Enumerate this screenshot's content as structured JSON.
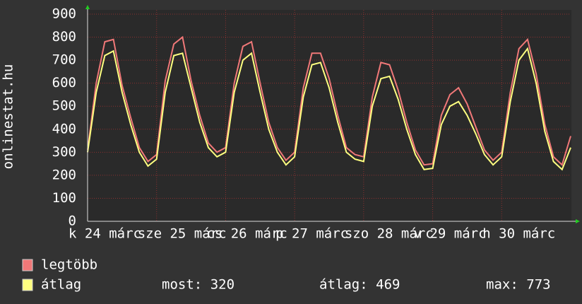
{
  "chart_data": {
    "type": "line",
    "side_label": "onlinestat.hu",
    "categories": [
      "k 24 márc",
      null,
      null,
      null,
      null,
      null,
      null,
      null,
      "sze 25 márc",
      null,
      null,
      null,
      null,
      null,
      null,
      null,
      "cs 26 márc",
      null,
      null,
      null,
      null,
      null,
      null,
      null,
      "p 27 márc",
      null,
      null,
      null,
      null,
      null,
      null,
      null,
      "szo 28 márc",
      null,
      null,
      null,
      null,
      null,
      null,
      null,
      "v 29 márc",
      null,
      null,
      null,
      null,
      null,
      null,
      null,
      "h 30 márc",
      null,
      null,
      null,
      null,
      null,
      null,
      null,
      null
    ],
    "series": [
      {
        "name": "legtöbb",
        "color": "#f07878",
        "values": [
          310,
          600,
          780,
          790,
          590,
          450,
          320,
          260,
          290,
          610,
          770,
          800,
          610,
          460,
          340,
          300,
          320,
          600,
          760,
          780,
          600,
          430,
          320,
          265,
          300,
          580,
          730,
          730,
          620,
          460,
          320,
          290,
          280,
          540,
          690,
          680,
          570,
          430,
          310,
          245,
          250,
          460,
          550,
          580,
          510,
          410,
          310,
          265,
          300,
          560,
          750,
          790,
          640,
          420,
          280,
          245,
          370
        ]
      },
      {
        "name": "átlag",
        "color": "#ffff80",
        "values": [
          300,
          560,
          720,
          740,
          560,
          420,
          300,
          240,
          270,
          560,
          720,
          730,
          580,
          430,
          320,
          280,
          300,
          560,
          700,
          730,
          560,
          400,
          300,
          245,
          280,
          540,
          680,
          690,
          580,
          430,
          300,
          270,
          260,
          500,
          620,
          630,
          530,
          400,
          290,
          225,
          230,
          420,
          500,
          520,
          460,
          380,
          290,
          245,
          280,
          520,
          700,
          750,
          600,
          390,
          260,
          225,
          320
        ]
      }
    ],
    "stats": [
      {
        "label": "most:",
        "value": 320
      },
      {
        "label": "átlag:",
        "value": 469
      },
      {
        "label": "max:",
        "value": 773
      }
    ],
    "ylim": [
      0,
      900
    ],
    "yticks": [
      0,
      100,
      200,
      300,
      400,
      500,
      600,
      700,
      800,
      900
    ],
    "grid": true
  }
}
